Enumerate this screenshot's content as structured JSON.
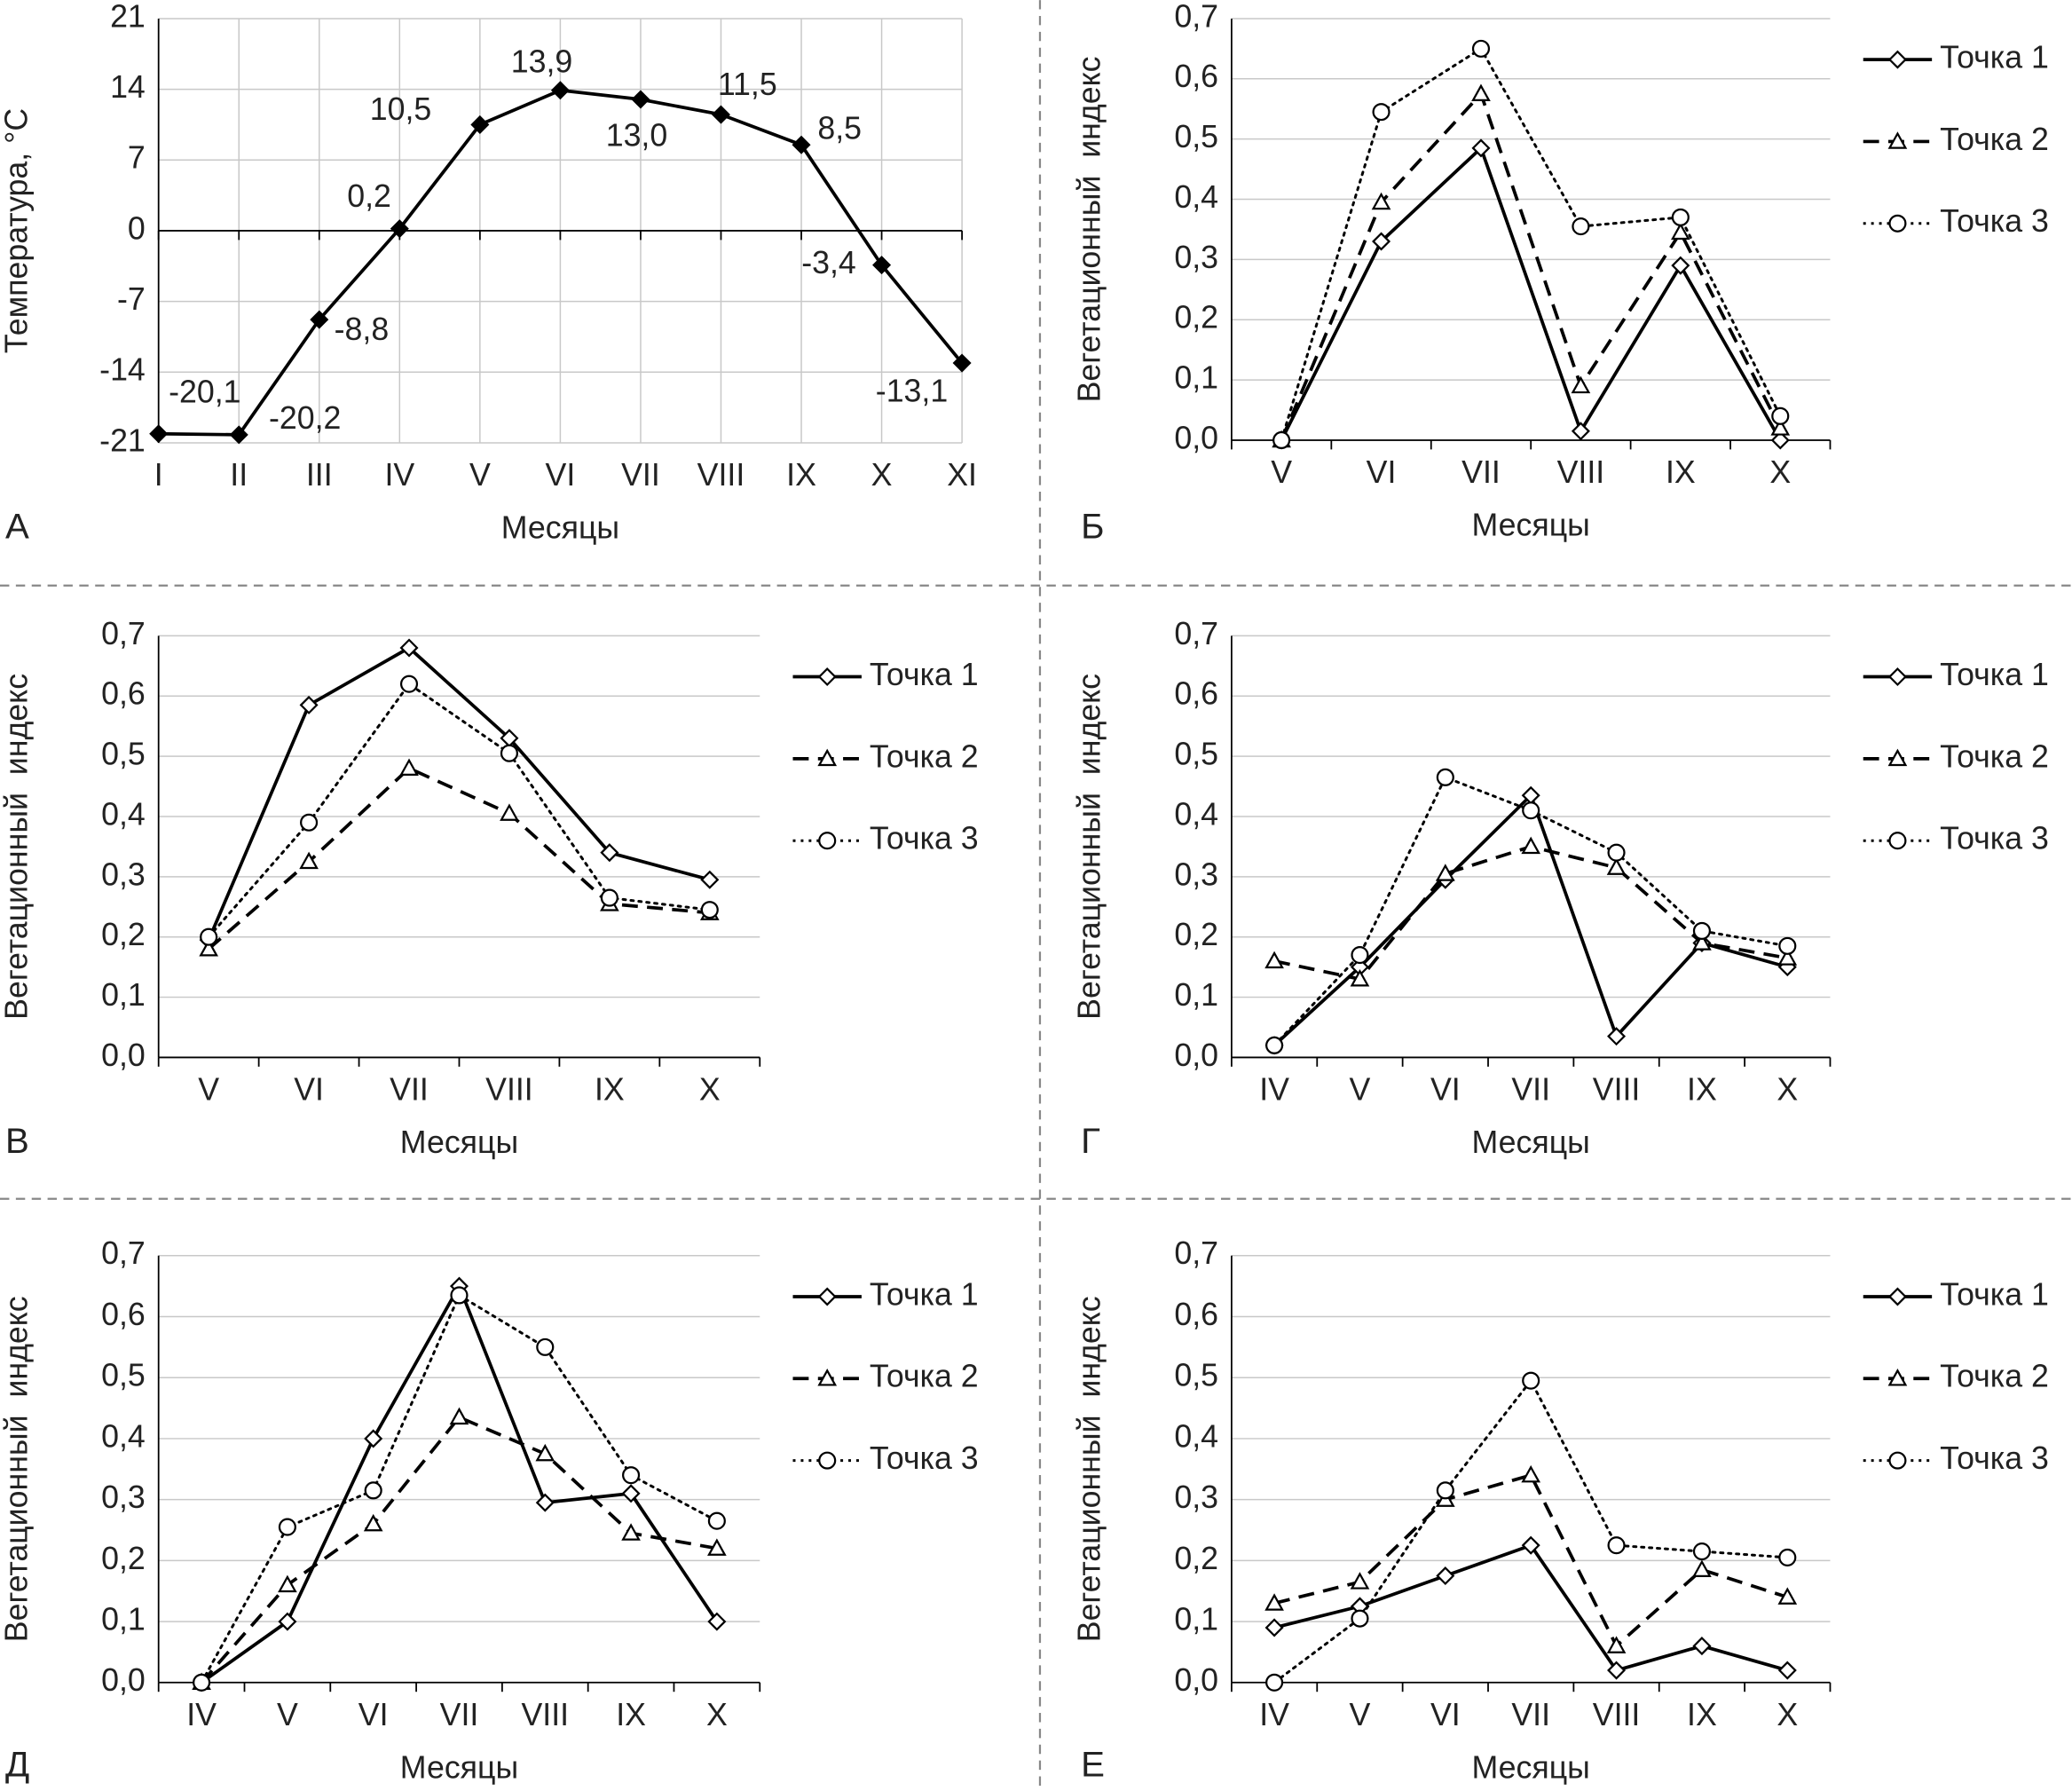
{
  "chart_data": [
    {
      "type": "line",
      "panel_label": "А",
      "xlabel": "Месяцы",
      "ylabel": "Температура, °C",
      "x_align": "edge",
      "xgrid": true,
      "grid": true,
      "categories": [
        "I",
        "II",
        "III",
        "IV",
        "V",
        "VI",
        "VII",
        "VIII",
        "IX",
        "X",
        "XI"
      ],
      "values": [
        -20.1,
        -20.2,
        -8.8,
        0.2,
        10.5,
        13.9,
        13.0,
        11.5,
        8.5,
        -3.4,
        -13.1
      ],
      "value_labels": [
        "-20,1",
        "-20,2",
        "-8,8",
        "0,2",
        "10,5",
        "13,9",
        "13,0",
        "11,5",
        "8,5",
        "-3,4",
        "-13,1"
      ],
      "color": "#000000",
      "marker": "diamond",
      "marker_fill": "#000000",
      "dash": "solid",
      "ylim": [
        -21,
        21
      ],
      "yticks": [
        -21,
        -14,
        -7,
        0,
        7,
        14,
        21
      ]
    },
    {
      "type": "line",
      "panel_label": "Б",
      "xlabel": "Месяцы",
      "ylabel": "Вегетационный  индекс",
      "x_align": "band",
      "grid": true,
      "legend": "right",
      "categories": [
        "V",
        "VI",
        "VII",
        "VIII",
        "IX",
        "X"
      ],
      "series": [
        {
          "name": "Точка 1",
          "color": "#000000",
          "dash": "solid",
          "marker": "diamond",
          "values": [
            0.0,
            0.33,
            0.485,
            0.015,
            0.29,
            0.0
          ]
        },
        {
          "name": "Точка 2",
          "color": "#000000",
          "dash": "dashed",
          "marker": "triangle",
          "values": [
            0.0,
            0.395,
            0.575,
            0.09,
            0.345,
            0.02
          ]
        },
        {
          "name": "Точка 3",
          "color": "#000000",
          "dash": "dotted",
          "marker": "circle",
          "values": [
            0.0,
            0.545,
            0.65,
            0.355,
            0.37,
            0.04
          ]
        }
      ],
      "ylim": [
        0,
        0.7
      ],
      "yticks": [
        {
          "value": 0,
          "label": "0,0"
        },
        {
          "value": 0.1,
          "label": "0,1"
        },
        {
          "value": 0.2,
          "label": "0,2"
        },
        {
          "value": 0.3,
          "label": "0,3"
        },
        {
          "value": 0.4,
          "label": "0,4"
        },
        {
          "value": 0.5,
          "label": "0,5"
        },
        {
          "value": 0.6,
          "label": "0,6"
        },
        {
          "value": 0.7,
          "label": "0,7"
        }
      ]
    },
    {
      "type": "line",
      "panel_label": "В",
      "xlabel": "Месяцы",
      "ylabel": "Вегетационный  индекс",
      "x_align": "band",
      "grid": true,
      "legend": "right",
      "categories": [
        "V",
        "VI",
        "VII",
        "VIII",
        "IX",
        "X"
      ],
      "series": [
        {
          "name": "Точка 1",
          "color": "#000000",
          "dash": "solid",
          "marker": "diamond",
          "values": [
            0.195,
            0.585,
            0.68,
            0.53,
            0.34,
            0.295
          ]
        },
        {
          "name": "Точка 2",
          "color": "#000000",
          "dash": "dashed",
          "marker": "triangle",
          "values": [
            0.18,
            0.325,
            0.48,
            0.405,
            0.255,
            0.24
          ]
        },
        {
          "name": "Точка 3",
          "color": "#000000",
          "dash": "dotted",
          "marker": "circle",
          "values": [
            0.2,
            0.39,
            0.62,
            0.505,
            0.265,
            0.245
          ]
        }
      ],
      "ylim": [
        0,
        0.7
      ],
      "yticks": [
        {
          "value": 0,
          "label": "0,0"
        },
        {
          "value": 0.1,
          "label": "0,1"
        },
        {
          "value": 0.2,
          "label": "0,2"
        },
        {
          "value": 0.3,
          "label": "0,3"
        },
        {
          "value": 0.4,
          "label": "0,4"
        },
        {
          "value": 0.5,
          "label": "0,5"
        },
        {
          "value": 0.6,
          "label": "0,6"
        },
        {
          "value": 0.7,
          "label": "0,7"
        }
      ]
    },
    {
      "type": "line",
      "panel_label": "Г",
      "xlabel": "Месяцы",
      "ylabel": "Вегетационный  индекс",
      "x_align": "band",
      "grid": true,
      "legend": "right",
      "categories": [
        "IV",
        "V",
        "VI",
        "VII",
        "VIII",
        "IX",
        "X"
      ],
      "series": [
        {
          "name": "Точка 1",
          "color": "#000000",
          "dash": "solid",
          "marker": "diamond",
          "values": [
            0.02,
            0.15,
            0.295,
            0.435,
            0.035,
            0.19,
            0.15
          ]
        },
        {
          "name": "Точка 2",
          "color": "#000000",
          "dash": "dashed",
          "marker": "triangle",
          "values": [
            0.16,
            0.13,
            0.305,
            0.35,
            0.315,
            0.19,
            0.165
          ]
        },
        {
          "name": "Точка 3",
          "color": "#000000",
          "dash": "dotted",
          "marker": "circle",
          "values": [
            0.02,
            0.17,
            0.465,
            0.41,
            0.34,
            0.21,
            0.185
          ]
        }
      ],
      "ylim": [
        0,
        0.7
      ],
      "yticks": [
        {
          "value": 0,
          "label": "0,0"
        },
        {
          "value": 0.1,
          "label": "0,1"
        },
        {
          "value": 0.2,
          "label": "0,2"
        },
        {
          "value": 0.3,
          "label": "0,3"
        },
        {
          "value": 0.4,
          "label": "0,4"
        },
        {
          "value": 0.5,
          "label": "0,5"
        },
        {
          "value": 0.6,
          "label": "0,6"
        },
        {
          "value": 0.7,
          "label": "0,7"
        }
      ]
    },
    {
      "type": "line",
      "panel_label": "Д",
      "xlabel": "Месяцы",
      "ylabel": "Вегетационный  индекс",
      "x_align": "band",
      "grid": true,
      "legend": "right",
      "categories": [
        "IV",
        "V",
        "VI",
        "VII",
        "VIII",
        "IX",
        "X"
      ],
      "series": [
        {
          "name": "Точка 1",
          "color": "#000000",
          "dash": "solid",
          "marker": "diamond",
          "values": [
            0.0,
            0.1,
            0.4,
            0.65,
            0.295,
            0.31,
            0.1
          ]
        },
        {
          "name": "Точка 2",
          "color": "#000000",
          "dash": "dashed",
          "marker": "triangle",
          "values": [
            0.0,
            0.16,
            0.26,
            0.435,
            0.375,
            0.245,
            0.22
          ]
        },
        {
          "name": "Точка 3",
          "color": "#000000",
          "dash": "dotted",
          "marker": "circle",
          "values": [
            0.0,
            0.255,
            0.315,
            0.635,
            0.55,
            0.34,
            0.265
          ]
        }
      ],
      "ylim": [
        0,
        0.7
      ],
      "yticks": [
        {
          "value": 0,
          "label": "0,0"
        },
        {
          "value": 0.1,
          "label": "0,1"
        },
        {
          "value": 0.2,
          "label": "0,2"
        },
        {
          "value": 0.3,
          "label": "0,3"
        },
        {
          "value": 0.4,
          "label": "0,4"
        },
        {
          "value": 0.5,
          "label": "0,5"
        },
        {
          "value": 0.6,
          "label": "0,6"
        },
        {
          "value": 0.7,
          "label": "0,7"
        }
      ]
    },
    {
      "type": "line",
      "panel_label": "Е",
      "xlabel": "Месяцы",
      "ylabel": "Вегетационный  индекс",
      "x_align": "band",
      "grid": true,
      "legend": "right",
      "categories": [
        "IV",
        "V",
        "VI",
        "VII",
        "VIII",
        "IX",
        "X"
      ],
      "series": [
        {
          "name": "Точка 1",
          "color": "#000000",
          "dash": "solid",
          "marker": "diamond",
          "values": [
            0.09,
            0.125,
            0.175,
            0.225,
            0.02,
            0.06,
            0.02
          ]
        },
        {
          "name": "Точка 2",
          "color": "#000000",
          "dash": "dashed",
          "marker": "triangle",
          "values": [
            0.13,
            0.165,
            0.3,
            0.34,
            0.06,
            0.185,
            0.14
          ]
        },
        {
          "name": "Точка 3",
          "color": "#000000",
          "dash": "dotted",
          "marker": "circle",
          "values": [
            0.0,
            0.105,
            0.315,
            0.495,
            0.225,
            0.215,
            0.205
          ]
        }
      ],
      "ylim": [
        0,
        0.7
      ],
      "yticks": [
        {
          "value": 0,
          "label": "0,0"
        },
        {
          "value": 0.1,
          "label": "0,1"
        },
        {
          "value": 0.2,
          "label": "0,2"
        },
        {
          "value": 0.3,
          "label": "0,3"
        },
        {
          "value": 0.4,
          "label": "0,4"
        },
        {
          "value": 0.5,
          "label": "0,5"
        },
        {
          "value": 0.6,
          "label": "0,6"
        },
        {
          "value": 0.7,
          "label": "0,7"
        }
      ]
    }
  ]
}
